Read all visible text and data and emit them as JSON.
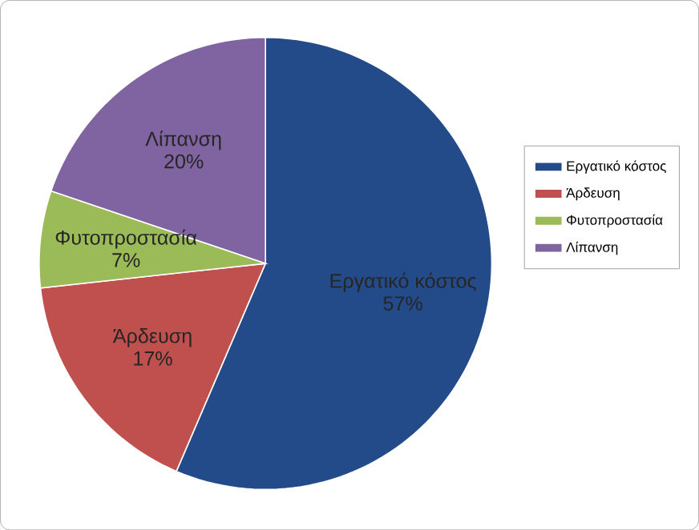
{
  "chart_data": {
    "type": "pie",
    "categories": [
      "Εργατικό κόστος",
      "Άρδευση",
      "Φυτοπροστασία",
      "Λίπανση"
    ],
    "values": [
      57,
      17,
      7,
      20
    ],
    "value_labels": [
      "57%",
      "17%",
      "7%",
      "20%"
    ],
    "colors": [
      "#234a89",
      "#c0504d",
      "#9bbb59",
      "#8064a2"
    ],
    "legend": "right"
  }
}
